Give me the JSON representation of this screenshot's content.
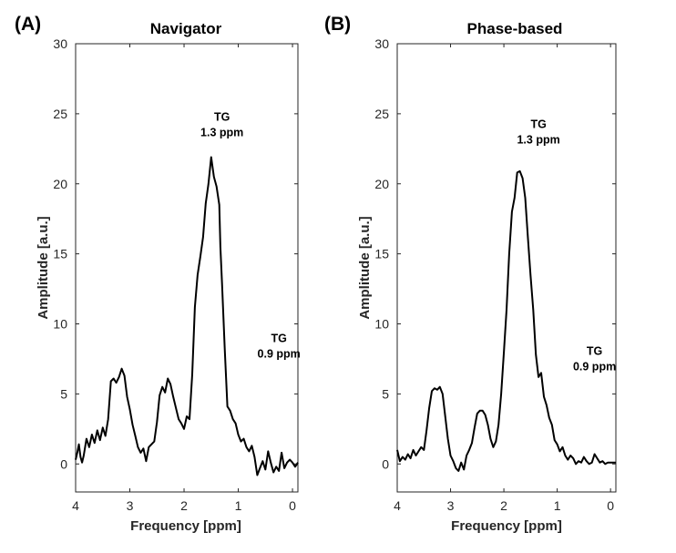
{
  "chart_data": [
    {
      "type": "line",
      "panel_label": "(A)",
      "title": "Navigator",
      "xlabel": "Frequency [ppm]",
      "ylabel": "Amplitude [a.u.]",
      "xlim": [
        4,
        -0.1
      ],
      "ylim": [
        -2,
        30
      ],
      "xticks": [
        4,
        3,
        2,
        1,
        0
      ],
      "yticks": [
        0,
        5,
        10,
        15,
        20,
        25,
        30
      ],
      "annotations": [
        {
          "lines": [
            "TG",
            "1.3 ppm"
          ],
          "x": 1.3,
          "y": 24.5
        },
        {
          "lines": [
            "TG",
            "0.9 ppm"
          ],
          "x": 0.25,
          "y": 8.7
        }
      ],
      "series": [
        {
          "name": "Navigator",
          "x": [
            4.0,
            3.97,
            3.94,
            3.91,
            3.88,
            3.85,
            3.8,
            3.75,
            3.7,
            3.65,
            3.6,
            3.55,
            3.5,
            3.45,
            3.4,
            3.35,
            3.3,
            3.25,
            3.2,
            3.15,
            3.1,
            3.05,
            3.0,
            2.95,
            2.9,
            2.85,
            2.8,
            2.75,
            2.7,
            2.65,
            2.6,
            2.55,
            2.5,
            2.45,
            2.4,
            2.35,
            2.3,
            2.25,
            2.2,
            2.15,
            2.1,
            2.05,
            2.0,
            1.95,
            1.9,
            1.85,
            1.8,
            1.75,
            1.7,
            1.65,
            1.6,
            1.55,
            1.5,
            1.45,
            1.4,
            1.35,
            1.33,
            1.3,
            1.25,
            1.2,
            1.15,
            1.1,
            1.05,
            1.0,
            0.95,
            0.9,
            0.85,
            0.8,
            0.75,
            0.7,
            0.65,
            0.6,
            0.55,
            0.5,
            0.45,
            0.4,
            0.35,
            0.3,
            0.25,
            0.2,
            0.15,
            0.1,
            0.05,
            0.0,
            -0.05,
            -0.1
          ],
          "y": [
            0.3,
            0.8,
            1.4,
            0.5,
            0.1,
            0.6,
            1.8,
            1.2,
            2.1,
            1.5,
            2.4,
            1.7,
            2.6,
            2.0,
            3.2,
            5.9,
            6.1,
            5.8,
            6.2,
            6.8,
            6.3,
            4.8,
            3.9,
            2.8,
            2.0,
            1.2,
            0.8,
            1.1,
            0.2,
            1.2,
            1.4,
            1.6,
            3.0,
            4.9,
            5.5,
            5.1,
            6.1,
            5.7,
            4.8,
            4.0,
            3.2,
            2.9,
            2.5,
            3.4,
            3.2,
            6.4,
            11.2,
            13.5,
            14.8,
            16.2,
            18.6,
            20.0,
            21.9,
            20.5,
            19.8,
            18.5,
            15.5,
            12.9,
            8.2,
            4.1,
            3.8,
            3.2,
            2.9,
            2.1,
            1.6,
            1.8,
            1.2,
            0.9,
            1.3,
            0.5,
            -0.8,
            -0.3,
            0.2,
            -0.4,
            0.9,
            0.1,
            -0.6,
            -0.2,
            -0.5,
            0.8,
            -0.3,
            0.1,
            0.3,
            0.1,
            -0.2,
            0.1
          ]
        }
      ]
    },
    {
      "type": "line",
      "panel_label": "(B)",
      "title": "Phase-based",
      "xlabel": "Frequency [ppm]",
      "ylabel": "Amplitude [a.u.]",
      "xlim": [
        4,
        -0.1
      ],
      "ylim": [
        -2,
        30
      ],
      "xticks": [
        4,
        3,
        2,
        1,
        0
      ],
      "yticks": [
        0,
        5,
        10,
        15,
        20,
        25,
        30
      ],
      "annotations": [
        {
          "lines": [
            "TG",
            "1.3 ppm"
          ],
          "x": 1.35,
          "y": 24.0
        },
        {
          "lines": [
            "TG",
            "0.9 ppm"
          ],
          "x": 0.3,
          "y": 7.8
        }
      ],
      "series": [
        {
          "name": "Phase-based",
          "x": [
            4.0,
            3.95,
            3.9,
            3.85,
            3.8,
            3.75,
            3.7,
            3.65,
            3.6,
            3.55,
            3.5,
            3.45,
            3.4,
            3.35,
            3.3,
            3.25,
            3.2,
            3.15,
            3.1,
            3.05,
            3.0,
            2.95,
            2.9,
            2.85,
            2.8,
            2.75,
            2.7,
            2.65,
            2.6,
            2.55,
            2.5,
            2.45,
            2.4,
            2.35,
            2.3,
            2.25,
            2.2,
            2.15,
            2.1,
            2.05,
            2.0,
            1.95,
            1.9,
            1.85,
            1.8,
            1.75,
            1.7,
            1.65,
            1.6,
            1.55,
            1.5,
            1.45,
            1.4,
            1.35,
            1.3,
            1.25,
            1.2,
            1.15,
            1.1,
            1.05,
            1.0,
            0.95,
            0.9,
            0.85,
            0.8,
            0.75,
            0.7,
            0.65,
            0.6,
            0.55,
            0.5,
            0.45,
            0.4,
            0.35,
            0.3,
            0.25,
            0.2,
            0.15,
            0.1,
            0.05,
            0.0,
            -0.05,
            -0.1
          ],
          "y": [
            1.0,
            0.2,
            0.5,
            0.3,
            0.7,
            0.4,
            1.0,
            0.6,
            0.9,
            1.2,
            1.0,
            2.4,
            4.0,
            5.2,
            5.4,
            5.3,
            5.5,
            5.0,
            3.4,
            1.8,
            0.6,
            0.2,
            -0.3,
            -0.5,
            0.1,
            -0.4,
            0.6,
            1.0,
            1.5,
            2.6,
            3.6,
            3.8,
            3.8,
            3.5,
            2.8,
            1.8,
            1.2,
            1.6,
            2.8,
            5.0,
            8.0,
            11.0,
            15.0,
            18.0,
            19.0,
            20.8,
            20.9,
            20.4,
            19.0,
            16.2,
            13.5,
            11.0,
            7.8,
            6.2,
            6.5,
            4.8,
            4.2,
            3.3,
            2.8,
            1.7,
            1.4,
            0.9,
            1.2,
            0.6,
            0.3,
            0.6,
            0.4,
            0.0,
            0.2,
            0.1,
            0.5,
            0.2,
            0.0,
            0.1,
            0.7,
            0.4,
            0.1,
            0.2,
            0.0,
            0.1,
            0.1,
            0.1,
            0.1
          ]
        }
      ]
    }
  ]
}
